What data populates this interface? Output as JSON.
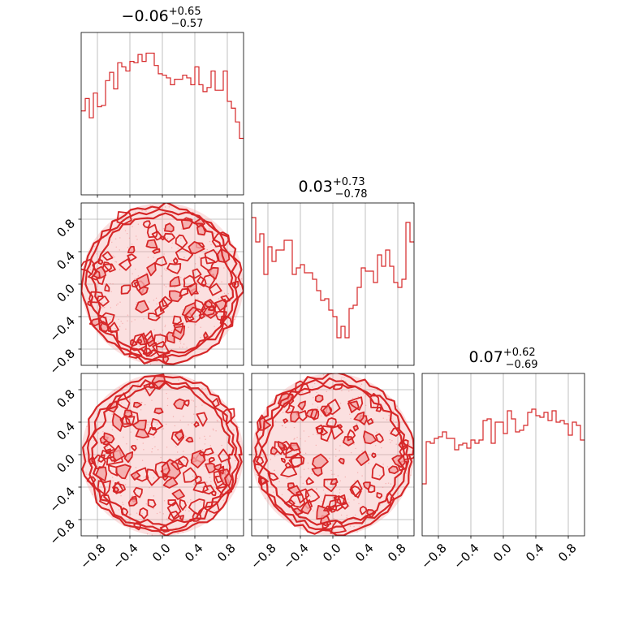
{
  "chart_data": [
    {
      "panel": "hist-0",
      "type": "histogram",
      "title": {
        "median": "−0.06",
        "plus": "+0.65",
        "minus": "−0.57"
      },
      "xlim": [
        -1,
        1
      ],
      "ylim": [
        0,
        1.18
      ],
      "bins": 40,
      "values": [
        0.61,
        0.7,
        0.56,
        0.74,
        0.64,
        0.65,
        0.83,
        0.89,
        0.77,
        0.96,
        0.93,
        0.9,
        0.97,
        0.96,
        1.02,
        0.97,
        1.03,
        1.03,
        0.94,
        0.88,
        0.87,
        0.85,
        0.8,
        0.84,
        0.84,
        0.87,
        0.85,
        0.8,
        0.93,
        0.8,
        0.75,
        0.78,
        0.9,
        0.76,
        0.76,
        0.9,
        0.68,
        0.63,
        0.53,
        0.41
      ],
      "grid": true,
      "color": "#d62728"
    },
    {
      "panel": "hist-1",
      "type": "histogram",
      "title": {
        "median": "0.03",
        "plus": "+0.73",
        "minus": "−0.78"
      },
      "xlim": [
        -1,
        1
      ],
      "ylim": [
        0,
        1.0
      ],
      "bins": 40,
      "values": [
        0.91,
        0.76,
        0.81,
        0.56,
        0.73,
        0.64,
        0.71,
        0.71,
        0.77,
        0.77,
        0.56,
        0.6,
        0.62,
        0.57,
        0.57,
        0.53,
        0.46,
        0.4,
        0.41,
        0.34,
        0.3,
        0.17,
        0.24,
        0.17,
        0.35,
        0.37,
        0.48,
        0.6,
        0.58,
        0.58,
        0.51,
        0.68,
        0.61,
        0.71,
        0.61,
        0.51,
        0.48,
        0.53,
        0.88,
        0.76
      ],
      "grid": true,
      "color": "#d62728"
    },
    {
      "panel": "hist-2",
      "type": "histogram",
      "title": {
        "median": "0.07",
        "plus": "+0.62",
        "minus": "−0.69"
      },
      "xlim": [
        -1,
        1
      ],
      "ylim": [
        0,
        1.0
      ],
      "bins": 40,
      "values": [
        0.32,
        0.58,
        0.57,
        0.6,
        0.61,
        0.64,
        0.6,
        0.6,
        0.53,
        0.56,
        0.57,
        0.54,
        0.59,
        0.57,
        0.59,
        0.71,
        0.72,
        0.57,
        0.7,
        0.7,
        0.63,
        0.77,
        0.72,
        0.64,
        0.65,
        0.68,
        0.76,
        0.78,
        0.74,
        0.73,
        0.76,
        0.71,
        0.77,
        0.7,
        0.71,
        0.69,
        0.62,
        0.7,
        0.68,
        0.59
      ],
      "grid": true,
      "color": "#d62728"
    },
    {
      "panel": "contour-1-0",
      "type": "contour",
      "xlim": [
        -1,
        1
      ],
      "ylim": [
        -1,
        1
      ],
      "shape": "uniform density on unit disk",
      "fill_color": "#f4a5a5",
      "line_color": "#d62728"
    },
    {
      "panel": "contour-2-0",
      "type": "contour",
      "xlim": [
        -1,
        1
      ],
      "ylim": [
        -1,
        1
      ],
      "shape": "uniform density on unit disk",
      "fill_color": "#f4a5a5",
      "line_color": "#d62728"
    },
    {
      "panel": "contour-2-1",
      "type": "contour",
      "xlim": [
        -1,
        1
      ],
      "ylim": [
        -1,
        1
      ],
      "shape": "uniform density on unit disk",
      "fill_color": "#f4a5a5",
      "line_color": "#d62728"
    }
  ],
  "tick_labels": [
    "−0.8",
    "−0.4",
    "0.0",
    "0.4",
    "0.8"
  ],
  "tick_values": [
    -0.8,
    -0.4,
    0.0,
    0.4,
    0.8
  ]
}
